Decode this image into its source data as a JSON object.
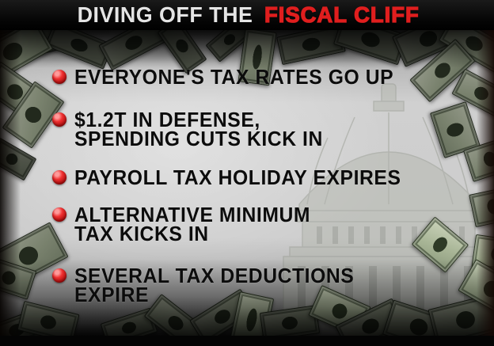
{
  "title": {
    "prefix": "DIVING OFF THE",
    "highlight": "FISCAL CLIFF"
  },
  "bullets": [
    {
      "lines": [
        "EVERYONE'S TAX RATES GO UP",
        ""
      ]
    },
    {
      "lines": [
        "$1.2T IN DEFENSE,",
        "SPENDING CUTS KICK IN"
      ]
    },
    {
      "lines": [
        "PAYROLL TAX HOLIDAY EXPIRES",
        ""
      ]
    },
    {
      "lines": [
        "ALTERNATIVE MINIMUM",
        "TAX KICKS IN"
      ]
    },
    {
      "lines": [
        "SEVERAL TAX DEDUCTIONS",
        "EXPIRE"
      ]
    }
  ],
  "icons": {
    "bullet": "red-dot",
    "background_scene": [
      "capitol-dome",
      "dollar-bills"
    ]
  },
  "colors": {
    "title_highlight_red": "#e01e1e",
    "title_white": "#e4e4e4",
    "bullet_red": "#d42020",
    "text_black": "#0c0c0c",
    "bar_black": "#040404"
  }
}
